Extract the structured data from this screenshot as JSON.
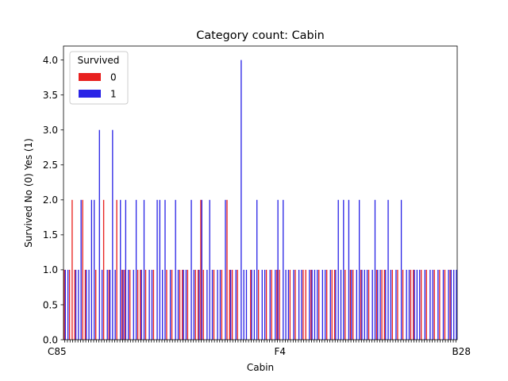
{
  "chart_data": {
    "type": "bar",
    "title": "Category count: Cabin",
    "xlabel": "Cabin",
    "ylabel": "Survived No (0) Yes (1)",
    "ylim": [
      0,
      4.2
    ],
    "yticks": [
      "0.0",
      "0.5",
      "1.0",
      "1.5",
      "2.0",
      "2.5",
      "3.0",
      "3.5",
      "4.0"
    ],
    "grid": false,
    "legend": {
      "title": "Survived",
      "placement": "upper-left"
    },
    "x_tick_labels_visible": [
      "C85",
      "F4",
      "B28"
    ],
    "series": [
      {
        "name": "0",
        "color": "#e8201e",
        "values": [
          1,
          0,
          1,
          2,
          1,
          0,
          0,
          2,
          1,
          0,
          0,
          0,
          1,
          0,
          0,
          2,
          0,
          1,
          0,
          0,
          2,
          0,
          1,
          1,
          0,
          1,
          0,
          0,
          1,
          1,
          0,
          1,
          0,
          0,
          1,
          0,
          0,
          0,
          0,
          1,
          0,
          1,
          0,
          0,
          1,
          1,
          0,
          1,
          0,
          0,
          1,
          1,
          2,
          1,
          0,
          0,
          0,
          1,
          0,
          0,
          1,
          0,
          2,
          1,
          1,
          0,
          1,
          0,
          0,
          0,
          0,
          1,
          0,
          0,
          1,
          0,
          0,
          1,
          0,
          1,
          0,
          1,
          1,
          0,
          0,
          0,
          1,
          0,
          1,
          0,
          0,
          1,
          1,
          0,
          1,
          0,
          0,
          1,
          0,
          0,
          1,
          0,
          1,
          1,
          0,
          0,
          0,
          1,
          0,
          1,
          1,
          0,
          0,
          1,
          0,
          0,
          1,
          0,
          0,
          1,
          0,
          1,
          1,
          0,
          0,
          1,
          0,
          1,
          0,
          1,
          0,
          0,
          1,
          1,
          0,
          0,
          1,
          0,
          1,
          0,
          0,
          1,
          0,
          1,
          0,
          1,
          0,
          1,
          0,
          0
        ]
      },
      {
        "name": "1",
        "color": "#2a24e6",
        "values": [
          1,
          1,
          0,
          0,
          1,
          1,
          2,
          0,
          1,
          1,
          2,
          2,
          0,
          3,
          1,
          0,
          1,
          1,
          3,
          1,
          0,
          2,
          1,
          2,
          1,
          0,
          1,
          2,
          0,
          1,
          2,
          0,
          1,
          1,
          0,
          2,
          2,
          1,
          2,
          0,
          1,
          0,
          2,
          1,
          0,
          1,
          1,
          0,
          2,
          1,
          0,
          1,
          2,
          0,
          1,
          2,
          1,
          0,
          1,
          1,
          0,
          2,
          0,
          1,
          0,
          1,
          0,
          4,
          1,
          1,
          0,
          1,
          1,
          2,
          0,
          1,
          1,
          0,
          1,
          0,
          1,
          2,
          0,
          2,
          1,
          1,
          0,
          1,
          0,
          1,
          1,
          0,
          0,
          1,
          1,
          1,
          1,
          0,
          1,
          1,
          0,
          1,
          0,
          1,
          2,
          1,
          2,
          0,
          2,
          1,
          0,
          1,
          2,
          1,
          1,
          1,
          0,
          1,
          2,
          1,
          1,
          0,
          1,
          2,
          1,
          0,
          1,
          0,
          2,
          0,
          1,
          1,
          0,
          1,
          1,
          1,
          0,
          1,
          0,
          1,
          1,
          0,
          1,
          0,
          1,
          0,
          1,
          1,
          1,
          1
        ]
      }
    ]
  }
}
